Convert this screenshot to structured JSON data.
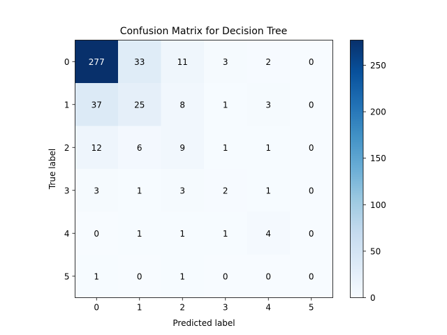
{
  "chart_data": {
    "type": "heatmap",
    "title": "Confusion Matrix for Decision Tree",
    "xlabel": "Predicted label",
    "ylabel": "True label",
    "x_categories": [
      "0",
      "1",
      "2",
      "3",
      "4",
      "5"
    ],
    "y_categories": [
      "0",
      "1",
      "2",
      "3",
      "4",
      "5"
    ],
    "values": [
      [
        277,
        33,
        11,
        3,
        2,
        0
      ],
      [
        37,
        25,
        8,
        1,
        3,
        0
      ],
      [
        12,
        6,
        9,
        1,
        1,
        0
      ],
      [
        3,
        1,
        3,
        2,
        1,
        0
      ],
      [
        0,
        1,
        1,
        1,
        4,
        0
      ],
      [
        1,
        0,
        1,
        0,
        0,
        0
      ]
    ],
    "colormap": "Blues",
    "color_range": [
      0,
      277
    ],
    "colorbar_ticks": [
      0,
      50,
      100,
      150,
      200,
      250
    ],
    "text_color_light": "#ffffff",
    "text_color_dark": "#000000"
  }
}
